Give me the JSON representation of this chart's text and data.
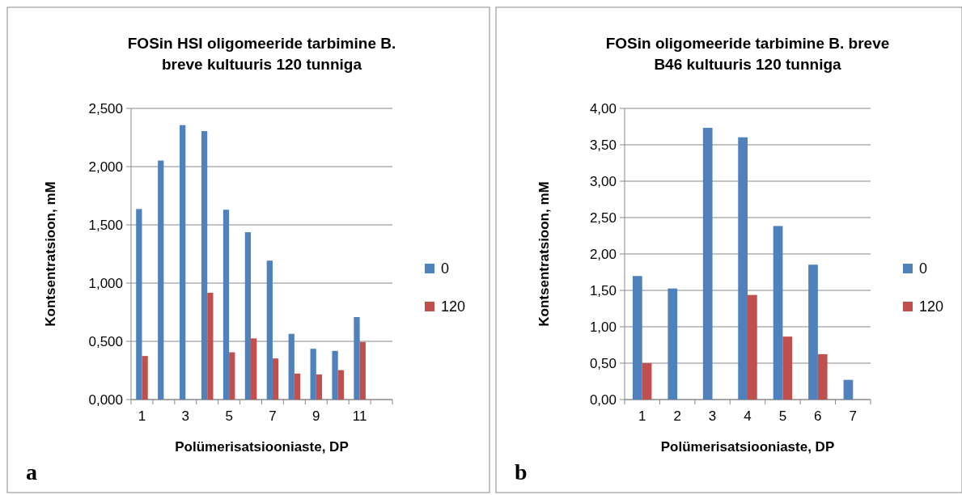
{
  "chart_data": [
    {
      "type": "bar",
      "title": "FOSin HSI oligomeeride tarbimine B. breve kultuuris 120 tunniga",
      "xlabel": "Polümerisatsiooniaste, DP",
      "ylabel": "Kontsentratsioon, mM",
      "annotations": [
        "a"
      ],
      "categories": [
        "1",
        null,
        "3",
        null,
        "5",
        null,
        "7",
        null,
        "9",
        null,
        "11",
        null
      ],
      "series": [
        {
          "name": "0",
          "color": "#4f81bd",
          "values": [
            1.636,
            2.052,
            2.356,
            2.305,
            1.63,
            1.437,
            1.193,
            0.564,
            0.436,
            0.418,
            0.708,
            null
          ]
        },
        {
          "name": "120",
          "color": "#c0504d",
          "values": [
            0.374,
            0,
            0,
            0.917,
            0.406,
            0.525,
            0.353,
            0.223,
            0.216,
            0.253,
            0.494,
            null
          ]
        }
      ],
      "ylim": [
        0,
        2.5
      ],
      "yticks": [
        {
          "value": 0,
          "label": "0,000"
        },
        {
          "value": 0.5,
          "label": "0,500"
        },
        {
          "value": 1,
          "label": "1,000"
        },
        {
          "value": 1.5,
          "label": "1,500"
        },
        {
          "value": 2,
          "label": "2,000"
        },
        {
          "value": 2.5,
          "label": "2,500"
        }
      ],
      "grid": "y",
      "legend": "right"
    },
    {
      "type": "bar",
      "title": "FOSin oligomeeride tarbimine B. breve B46 kultuuris 120 tunniga",
      "xlabel": "Polümerisatsiooniaste, DP",
      "ylabel": "Kontsentratsioon, mM",
      "annotations": [
        "b"
      ],
      "categories": [
        "1",
        "2",
        "3",
        "4",
        "5",
        "6",
        "7"
      ],
      "series": [
        {
          "name": "0",
          "color": "#4f81bd",
          "values": [
            1.697,
            1.526,
            3.733,
            3.603,
            2.384,
            1.853,
            0.271
          ]
        },
        {
          "name": "120",
          "color": "#c0504d",
          "values": [
            0.501,
            0,
            0,
            1.437,
            0.865,
            0.624,
            null
          ]
        }
      ],
      "ylim": [
        0,
        4
      ],
      "yticks": [
        {
          "value": 0,
          "label": "0,00"
        },
        {
          "value": 0.5,
          "label": "0,50"
        },
        {
          "value": 1,
          "label": "1,00"
        },
        {
          "value": 1.5,
          "label": "1,50"
        },
        {
          "value": 2,
          "label": "2,00"
        },
        {
          "value": 2.5,
          "label": "2,50"
        },
        {
          "value": 3,
          "label": "3,00"
        },
        {
          "value": 3.5,
          "label": "3,50"
        },
        {
          "value": 4,
          "label": "4,00"
        }
      ],
      "grid": "y",
      "legend": "right"
    }
  ]
}
